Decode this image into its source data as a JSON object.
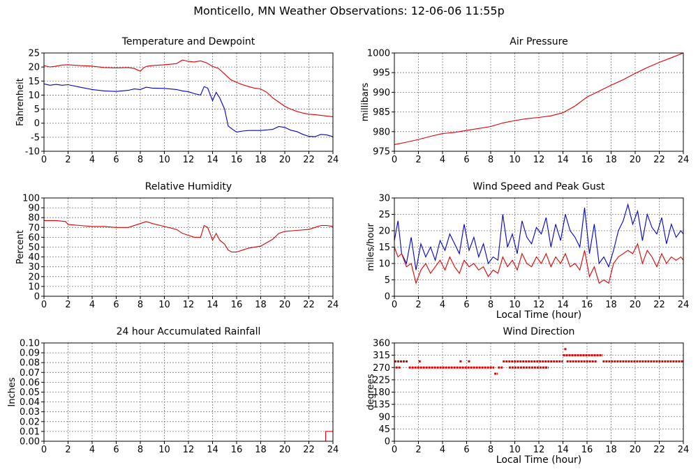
{
  "page": {
    "title": "Monticello, MN Weather Observations: 12-06-06 11:55p"
  },
  "chart_data": [
    {
      "id": "temp",
      "type": "line",
      "title": "Temperature and Dewpoint",
      "ylabel": "Fahrenheit",
      "xlabel": "",
      "xlim": [
        0,
        24
      ],
      "ylim": [
        -10,
        25
      ],
      "xticks": [
        "0",
        "2",
        "4",
        "6",
        "8",
        "10",
        "12",
        "14",
        "16",
        "18",
        "20",
        "22",
        "24"
      ],
      "yticks": [
        "-10",
        "-5",
        "0",
        "5",
        "10",
        "15",
        "20",
        "25"
      ],
      "grid": true,
      "series": [
        {
          "color": "#dd0000",
          "x": [
            0,
            0.5,
            1,
            1.5,
            2,
            3,
            4,
            5,
            6,
            7,
            7.5,
            8,
            8.3,
            8.6,
            9,
            10,
            11,
            11.5,
            12,
            12.5,
            13,
            13.5,
            14,
            14.5,
            15,
            15.5,
            16,
            16.5,
            17,
            17.5,
            18,
            18.5,
            19,
            19.5,
            20,
            20.5,
            21,
            21.5,
            22,
            22.5,
            23,
            23.5,
            24
          ],
          "y": [
            20.5,
            20,
            20.3,
            20.7,
            20.8,
            20.5,
            20.3,
            19.8,
            19.7,
            19.8,
            19.5,
            18.5,
            19.8,
            20.3,
            20.5,
            20.8,
            21.2,
            22.5,
            22,
            21.8,
            22.2,
            21.5,
            20.2,
            19.5,
            17.5,
            15.5,
            14.5,
            13.7,
            13,
            12.5,
            12.2,
            11,
            9,
            7.5,
            6,
            5,
            4.2,
            3.6,
            3.2,
            3,
            2.8,
            2.5,
            2.3
          ]
        },
        {
          "color": "#0000cc",
          "x": [
            0,
            0.5,
            1,
            1.5,
            2,
            3,
            4,
            5,
            6,
            7,
            7.5,
            8,
            8.5,
            9,
            10,
            11,
            11.5,
            12,
            12.5,
            13,
            13.3,
            13.6,
            14,
            14.3,
            14.6,
            15,
            15.3,
            15.6,
            16,
            16.5,
            17,
            18,
            19,
            19.5,
            20,
            20.5,
            21,
            21.5,
            22,
            22.5,
            23,
            23.5,
            24
          ],
          "y": [
            14,
            13.5,
            13.8,
            13.5,
            13.7,
            12.8,
            12,
            11.5,
            11.3,
            11.7,
            12.2,
            12,
            12.8,
            12.5,
            12.4,
            12,
            11.5,
            11.2,
            10.5,
            10,
            13,
            12.5,
            8,
            11,
            9,
            5,
            -1,
            -2,
            -3.2,
            -2.8,
            -2.6,
            -2.6,
            -2.2,
            -1.2,
            -1.5,
            -2.5,
            -3,
            -4,
            -4.7,
            -4.8,
            -4,
            -4.2,
            -4.8
          ]
        }
      ]
    },
    {
      "id": "pressure",
      "type": "line",
      "title": "Air Pressure",
      "ylabel": "millibars",
      "xlabel": "",
      "xlim": [
        0,
        24
      ],
      "ylim": [
        975,
        1000
      ],
      "xticks": [
        "0",
        "2",
        "4",
        "6",
        "8",
        "10",
        "12",
        "14",
        "16",
        "18",
        "20",
        "22",
        "24"
      ],
      "yticks": [
        "975",
        "980",
        "985",
        "990",
        "995",
        "1000"
      ],
      "grid": true,
      "series": [
        {
          "color": "#dd0000",
          "x": [
            0,
            1,
            2,
            3,
            4,
            5,
            6,
            7,
            8,
            9,
            10,
            11,
            12,
            13,
            14,
            15,
            16,
            17,
            18,
            19,
            20,
            21,
            22,
            23,
            24
          ],
          "y": [
            976.7,
            977.3,
            978,
            978.8,
            979.5,
            979.8,
            980.3,
            980.8,
            981.3,
            982.2,
            982.8,
            983.3,
            983.6,
            984,
            984.8,
            986.5,
            988.8,
            990.3,
            991.8,
            993.2,
            994.8,
            996.3,
            997.6,
            998.8,
            1000
          ]
        }
      ]
    },
    {
      "id": "humidity",
      "type": "line",
      "title": "Relative Humidity",
      "ylabel": "Percent",
      "xlabel": "",
      "xlim": [
        0,
        24
      ],
      "ylim": [
        0,
        100
      ],
      "xticks": [
        "0",
        "2",
        "4",
        "6",
        "8",
        "10",
        "12",
        "14",
        "16",
        "18",
        "20",
        "22",
        "24"
      ],
      "yticks": [
        "0",
        "10",
        "20",
        "30",
        "40",
        "50",
        "60",
        "70",
        "80",
        "90",
        "100"
      ],
      "grid": true,
      "series": [
        {
          "color": "#dd0000",
          "x": [
            0,
            1,
            1.8,
            2,
            3,
            4,
            5,
            6,
            7,
            8,
            8.5,
            9,
            10,
            11,
            11.5,
            12,
            12.5,
            13,
            13.3,
            13.6,
            14,
            14.3,
            14.6,
            15,
            15.3,
            15.6,
            16,
            16.5,
            17,
            18,
            19,
            19.5,
            20,
            21,
            22,
            22.5,
            23,
            23.5,
            24
          ],
          "y": [
            77,
            77,
            76,
            73,
            72,
            71,
            71,
            70,
            70,
            74,
            76,
            74,
            71,
            68,
            64,
            62,
            60,
            60,
            72,
            70,
            57,
            64,
            57,
            53,
            47,
            45,
            45,
            47,
            49,
            51,
            58,
            64,
            66,
            67,
            68,
            70,
            72,
            72,
            71
          ]
        }
      ]
    },
    {
      "id": "wind",
      "type": "line",
      "title": "Wind Speed and Peak Gust",
      "ylabel": "miles/hour",
      "xlabel": "Local Time (hour)",
      "xlim": [
        0,
        24
      ],
      "ylim": [
        0,
        30
      ],
      "xticks": [
        "0",
        "2",
        "4",
        "6",
        "8",
        "10",
        "12",
        "14",
        "16",
        "18",
        "20",
        "22",
        "24"
      ],
      "yticks": [
        "0",
        "5",
        "10",
        "15",
        "20",
        "25",
        "30"
      ],
      "grid": true,
      "series": [
        {
          "color": "#0000cc",
          "x": [
            0,
            0.3,
            0.6,
            1,
            1.4,
            1.8,
            2.2,
            2.6,
            3,
            3.4,
            3.8,
            4.2,
            4.6,
            5,
            5.4,
            5.8,
            6.2,
            6.6,
            7,
            7.4,
            7.8,
            8.2,
            8.6,
            9,
            9.4,
            9.8,
            10.2,
            10.6,
            11,
            11.4,
            11.8,
            12.2,
            12.6,
            13,
            13.4,
            13.8,
            14.2,
            14.6,
            15,
            15.4,
            15.8,
            16.2,
            16.6,
            17,
            17.4,
            17.8,
            18.2,
            18.6,
            19,
            19.4,
            19.8,
            20.2,
            20.6,
            21,
            21.4,
            21.8,
            22.2,
            22.6,
            23,
            23.4,
            23.8,
            24
          ],
          "y": [
            17,
            23,
            13,
            10,
            18,
            8,
            16,
            12,
            15,
            11,
            17,
            14,
            19,
            16,
            13,
            22,
            14,
            18,
            12,
            16,
            10,
            12,
            11,
            25,
            15,
            19,
            13,
            23,
            18,
            16,
            21,
            19,
            24,
            15,
            22,
            17,
            25,
            20,
            18,
            15,
            27,
            13,
            22,
            10,
            12,
            9,
            14,
            20,
            23,
            28,
            22,
            26,
            17,
            25,
            21,
            19,
            24,
            16,
            22,
            18,
            20,
            19
          ]
        },
        {
          "color": "#dd0000",
          "x": [
            0,
            0.3,
            0.6,
            1,
            1.4,
            1.8,
            2.2,
            2.6,
            3,
            3.4,
            3.8,
            4.2,
            4.6,
            5,
            5.4,
            5.8,
            6.2,
            6.6,
            7,
            7.4,
            7.8,
            8.2,
            8.6,
            9,
            9.4,
            9.8,
            10.2,
            10.6,
            11,
            11.4,
            11.8,
            12.2,
            12.6,
            13,
            13.4,
            13.8,
            14.2,
            14.6,
            15,
            15.4,
            15.8,
            16.2,
            16.6,
            17,
            17.4,
            17.8,
            18.2,
            18.6,
            19,
            19.4,
            19.8,
            20.2,
            20.6,
            21,
            21.4,
            21.8,
            22.2,
            22.6,
            23,
            23.4,
            23.8,
            24
          ],
          "y": [
            15,
            12,
            13,
            9,
            10,
            4,
            8,
            10,
            7,
            9,
            11,
            8,
            12,
            9,
            7,
            11,
            9,
            10,
            8,
            9,
            6,
            8,
            7,
            12,
            9,
            11,
            8,
            13,
            10,
            9,
            12,
            10,
            13,
            9,
            12,
            10,
            13,
            9,
            10,
            8,
            14,
            6,
            9,
            4,
            5,
            4,
            10,
            12,
            13,
            14,
            13,
            16,
            10,
            14,
            12,
            9,
            13,
            10,
            12,
            11,
            12,
            11
          ]
        }
      ]
    },
    {
      "id": "rain",
      "type": "line",
      "title": "24 hour Accumulated Rainfall",
      "ylabel": "Inches",
      "xlabel": "",
      "xlim": [
        0,
        24
      ],
      "ylim": [
        0,
        0.1
      ],
      "xticks": [
        "0",
        "2",
        "4",
        "6",
        "8",
        "10",
        "12",
        "14",
        "16",
        "18",
        "20",
        "22",
        "24"
      ],
      "yticks": [
        "0.00",
        "0.01",
        "0.02",
        "0.03",
        "0.04",
        "0.05",
        "0.06",
        "0.07",
        "0.08",
        "0.09",
        "0.10"
      ],
      "grid": true,
      "series": [
        {
          "color": "#dd0000",
          "x": [
            0,
            23.4,
            23.4,
            24
          ],
          "y": [
            0,
            0,
            0.01,
            0.01
          ]
        }
      ]
    },
    {
      "id": "direction",
      "type": "scatter",
      "title": "Wind Direction",
      "ylabel": "degrees",
      "xlabel": "Local Time (hour)",
      "xlim": [
        0,
        24
      ],
      "ylim": [
        0,
        360
      ],
      "xticks": [
        "0",
        "2",
        "4",
        "6",
        "8",
        "10",
        "12",
        "14",
        "16",
        "18",
        "20",
        "22",
        "24"
      ],
      "yticks": [
        "0",
        "45",
        "90",
        "135",
        "180",
        "225",
        "270",
        "315",
        "360"
      ],
      "grid": true,
      "series": [
        {
          "color": "#dd0000",
          "segments": [
            {
              "x0": 0,
              "x1": 1.1,
              "y": 292.5
            },
            {
              "x0": 0.1,
              "x1": 0.5,
              "y": 270
            },
            {
              "x0": 1.2,
              "x1": 8.3,
              "y": 270
            },
            {
              "x0": 8.3,
              "x1": 8.6,
              "y": 247.5
            },
            {
              "x0": 8.6,
              "x1": 9.0,
              "y": 270
            },
            {
              "x0": 9.0,
              "x1": 14.0,
              "y": 292.5
            },
            {
              "x0": 9.5,
              "x1": 12.8,
              "y": 270
            },
            {
              "x0": 14.0,
              "x1": 17.3,
              "y": 315
            },
            {
              "x0": 14.3,
              "x1": 16.8,
              "y": 292.5
            },
            {
              "x0": 17.3,
              "x1": 24.0,
              "y": 292.5
            }
          ],
          "points": [
            {
              "x": 2.1,
              "y": 292.5
            },
            {
              "x": 5.5,
              "y": 292.5
            },
            {
              "x": 6.2,
              "y": 292.5
            },
            {
              "x": 14.2,
              "y": 337.5
            },
            {
              "x": 12.6,
              "y": 270
            }
          ]
        }
      ]
    }
  ]
}
